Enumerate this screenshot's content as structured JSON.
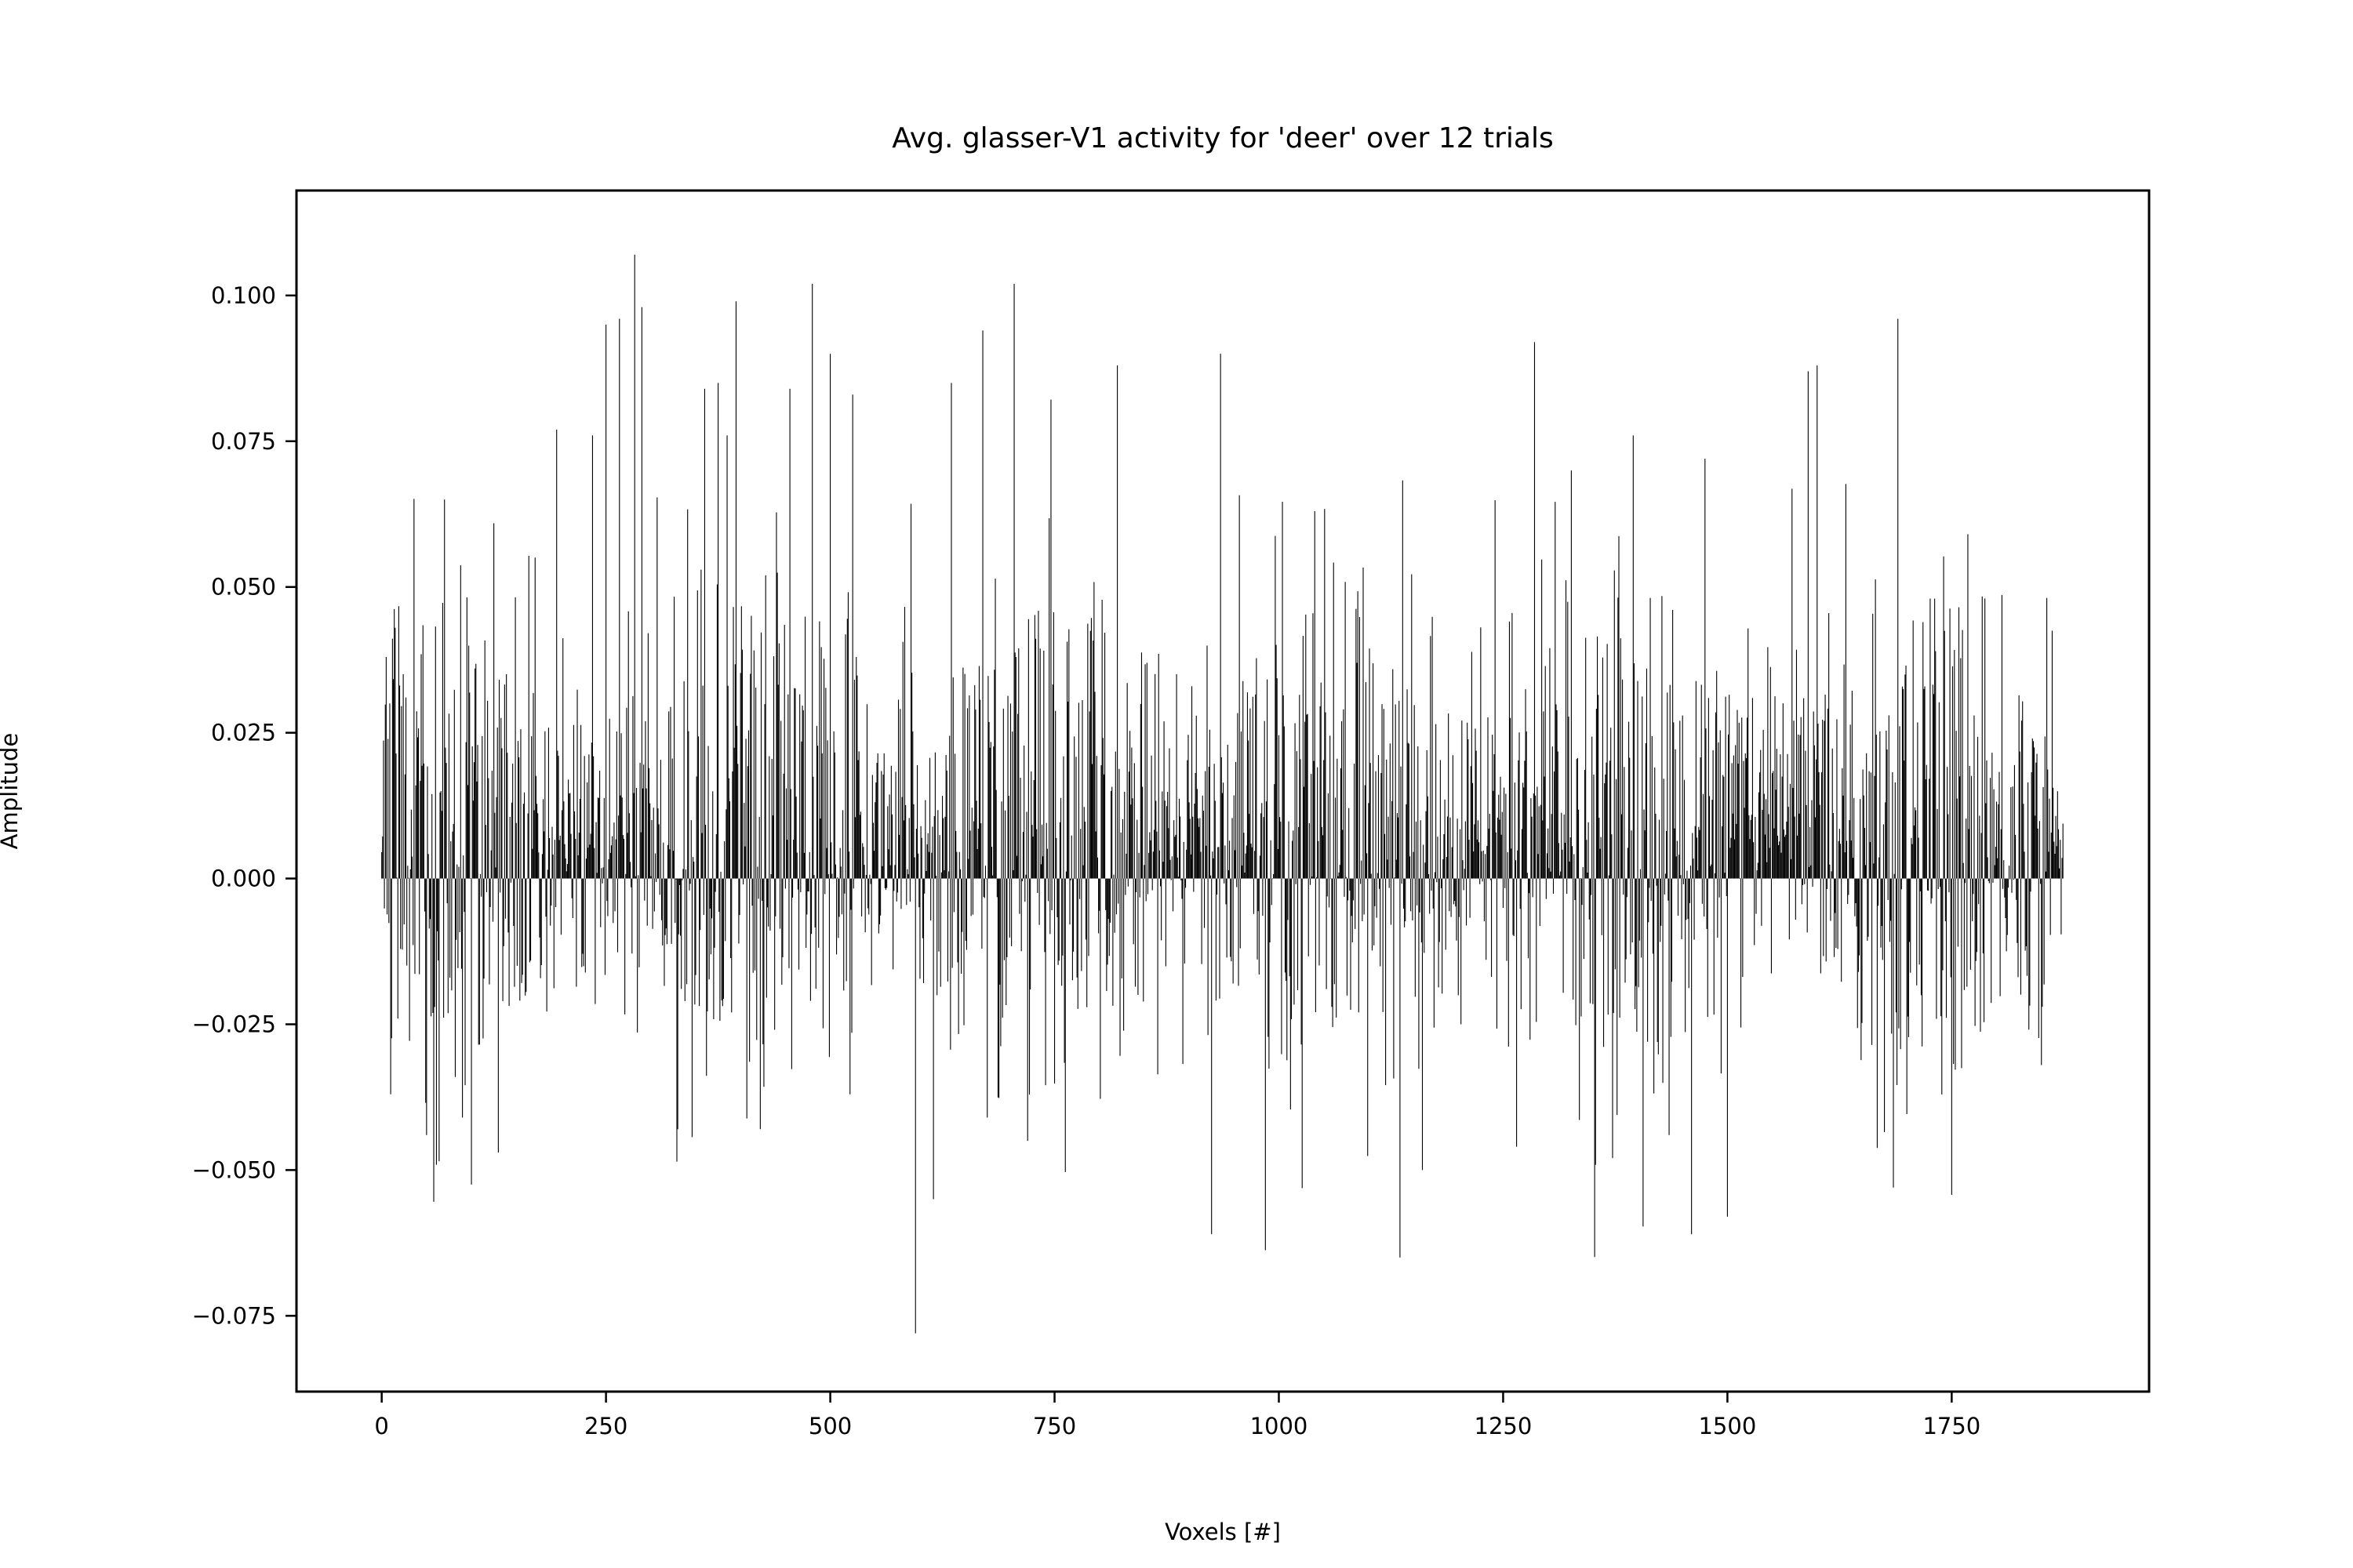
{
  "chart_data": {
    "type": "bar",
    "title": "Avg. glasser-V1 activity for 'deer' over 12 trials",
    "xlabel": "Voxels [#]",
    "ylabel": "Amplitude",
    "xlim": [
      -95,
      1970
    ],
    "ylim": [
      -0.088,
      0.118
    ],
    "x_ticks": [
      0,
      250,
      500,
      750,
      1000,
      1250,
      1500,
      1750
    ],
    "x_tick_labels": [
      "0",
      "250",
      "500",
      "750",
      "1000",
      "1250",
      "1500",
      "1750"
    ],
    "y_ticks": [
      -0.075,
      -0.05,
      -0.025,
      0,
      0.025,
      0.05,
      0.075,
      0.1
    ],
    "y_tick_labels": [
      "−0.075",
      "−0.050",
      "−0.025",
      "0.000",
      "0.025",
      "0.050",
      "0.075",
      "0.100"
    ],
    "bar_color": "#000000",
    "grid": false,
    "n_voxels": 1875,
    "series": [
      {
        "notable_values": [
          {
            "x": 5,
            "y": 0.038
          },
          {
            "x": 10,
            "y": -0.037
          },
          {
            "x": 15,
            "y": 0.043
          },
          {
            "x": 50,
            "y": -0.044
          },
          {
            "x": 70,
            "y": 0.065
          },
          {
            "x": 90,
            "y": -0.041
          },
          {
            "x": 130,
            "y": -0.047
          },
          {
            "x": 195,
            "y": 0.077
          },
          {
            "x": 235,
            "y": 0.076
          },
          {
            "x": 250,
            "y": 0.095
          },
          {
            "x": 265,
            "y": 0.096
          },
          {
            "x": 282,
            "y": 0.107
          },
          {
            "x": 290,
            "y": 0.098
          },
          {
            "x": 330,
            "y": -0.043
          },
          {
            "x": 360,
            "y": 0.084
          },
          {
            "x": 375,
            "y": 0.085
          },
          {
            "x": 385,
            "y": 0.076
          },
          {
            "x": 395,
            "y": 0.099
          },
          {
            "x": 455,
            "y": 0.084
          },
          {
            "x": 480,
            "y": 0.102
          },
          {
            "x": 500,
            "y": 0.09
          },
          {
            "x": 525,
            "y": 0.083
          },
          {
            "x": 595,
            "y": -0.078
          },
          {
            "x": 615,
            "y": -0.055
          },
          {
            "x": 635,
            "y": 0.085
          },
          {
            "x": 670,
            "y": 0.094
          },
          {
            "x": 675,
            "y": -0.041
          },
          {
            "x": 705,
            "y": 0.102
          },
          {
            "x": 720,
            "y": -0.045
          },
          {
            "x": 820,
            "y": 0.088
          },
          {
            "x": 925,
            "y": -0.061
          },
          {
            "x": 935,
            "y": 0.09
          },
          {
            "x": 1040,
            "y": 0.063
          },
          {
            "x": 1135,
            "y": -0.065
          },
          {
            "x": 1160,
            "y": -0.05
          },
          {
            "x": 1265,
            "y": -0.046
          },
          {
            "x": 1285,
            "y": 0.092
          },
          {
            "x": 1395,
            "y": 0.076
          },
          {
            "x": 1435,
            "y": -0.044
          },
          {
            "x": 1460,
            "y": -0.061
          },
          {
            "x": 1475,
            "y": 0.072
          },
          {
            "x": 1500,
            "y": -0.058
          },
          {
            "x": 1590,
            "y": 0.087
          },
          {
            "x": 1600,
            "y": 0.088
          },
          {
            "x": 1685,
            "y": -0.053
          },
          {
            "x": 1690,
            "y": 0.096
          },
          {
            "x": 1850,
            "y": -0.032
          }
        ]
      }
    ]
  }
}
